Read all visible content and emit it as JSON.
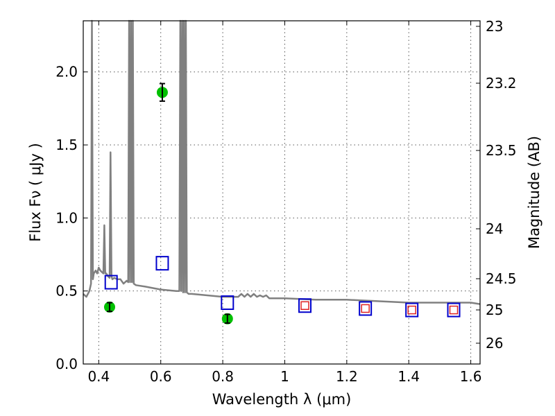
{
  "chart_data": {
    "type": "scatter",
    "title": "",
    "xlabel": "Wavelength  λ (μm)",
    "ylabel": "Flux  Fν  ( μJy )",
    "y2label": "Magnitude (AB)",
    "xlim": [
      0.35,
      1.63
    ],
    "ylim": [
      0.0,
      2.35
    ],
    "grid": true,
    "x_ticks": [
      {
        "value": 0.4,
        "label": "0.4"
      },
      {
        "value": 0.6,
        "label": "0.6"
      },
      {
        "value": 0.8,
        "label": "0.8"
      },
      {
        "value": 1.0,
        "label": "1"
      },
      {
        "value": 1.2,
        "label": "1.2"
      },
      {
        "value": 1.4,
        "label": "1.4"
      },
      {
        "value": 1.6,
        "label": "1.6"
      }
    ],
    "y_ticks": [
      {
        "value": 0.0,
        "label": "0.0"
      },
      {
        "value": 0.5,
        "label": "0.5"
      },
      {
        "value": 1.0,
        "label": "1.0"
      },
      {
        "value": 1.5,
        "label": "1.5"
      },
      {
        "value": 2.0,
        "label": "2.0"
      }
    ],
    "mag_ticks": [
      {
        "label": "23"
      },
      {
        "label": "23.2"
      },
      {
        "label": "23.5"
      },
      {
        "label": "24"
      },
      {
        "label": "24.5"
      },
      {
        "label": "25"
      },
      {
        "label": "26"
      }
    ],
    "series": [
      {
        "kind": "line",
        "color": "#808080",
        "x": [
          0.35,
          0.36,
          0.37,
          0.375,
          0.378,
          0.381,
          0.384,
          0.39,
          0.395,
          0.4,
          0.405,
          0.41,
          0.415,
          0.418,
          0.421,
          0.424,
          0.43,
          0.435,
          0.438,
          0.441,
          0.444,
          0.45,
          0.46,
          0.47,
          0.48,
          0.49,
          0.495,
          0.498,
          0.501,
          0.504,
          0.507,
          0.51,
          0.513,
          0.52,
          0.55,
          0.6,
          0.65,
          0.66,
          0.663,
          0.666,
          0.669,
          0.672,
          0.675,
          0.678,
          0.681,
          0.684,
          0.69,
          0.7,
          0.75,
          0.8,
          0.85,
          0.86,
          0.87,
          0.88,
          0.89,
          0.9,
          0.91,
          0.92,
          0.93,
          0.94,
          0.95,
          1.0,
          1.1,
          1.2,
          1.3,
          1.4,
          1.5,
          1.6,
          1.63
        ],
        "y": [
          0.48,
          0.46,
          0.5,
          0.55,
          2.35,
          0.58,
          0.62,
          0.64,
          0.62,
          0.66,
          0.64,
          0.63,
          0.62,
          0.95,
          0.62,
          0.62,
          0.6,
          0.59,
          1.45,
          0.6,
          0.58,
          0.59,
          0.58,
          0.58,
          0.55,
          0.57,
          0.56,
          2.35,
          0.56,
          2.35,
          0.56,
          2.35,
          0.55,
          0.54,
          0.53,
          0.51,
          0.5,
          0.5,
          2.35,
          0.5,
          2.35,
          0.49,
          2.35,
          0.49,
          2.35,
          0.49,
          0.48,
          0.48,
          0.47,
          0.46,
          0.46,
          0.48,
          0.46,
          0.48,
          0.46,
          0.48,
          0.46,
          0.47,
          0.46,
          0.47,
          0.45,
          0.45,
          0.44,
          0.44,
          0.43,
          0.42,
          0.42,
          0.42,
          0.41
        ]
      },
      {
        "kind": "points",
        "marker": "circle",
        "color": "#00c000",
        "x": [
          0.435,
          0.605,
          0.815
        ],
        "y": [
          0.39,
          1.86,
          0.31
        ],
        "yerr": [
          0.03,
          0.06,
          0.03
        ]
      },
      {
        "kind": "points",
        "marker": "square-open",
        "color": "#0000cc",
        "x": [
          0.44,
          0.605,
          0.815,
          1.065,
          1.26,
          1.41,
          1.545
        ],
        "y": [
          0.56,
          0.69,
          0.42,
          0.4,
          0.38,
          0.37,
          0.37
        ]
      },
      {
        "kind": "points",
        "marker": "square-open-small",
        "color": "#dd2222",
        "x": [
          1.065,
          1.26,
          1.41,
          1.545
        ],
        "y": [
          0.4,
          0.38,
          0.37,
          0.37
        ]
      }
    ]
  }
}
